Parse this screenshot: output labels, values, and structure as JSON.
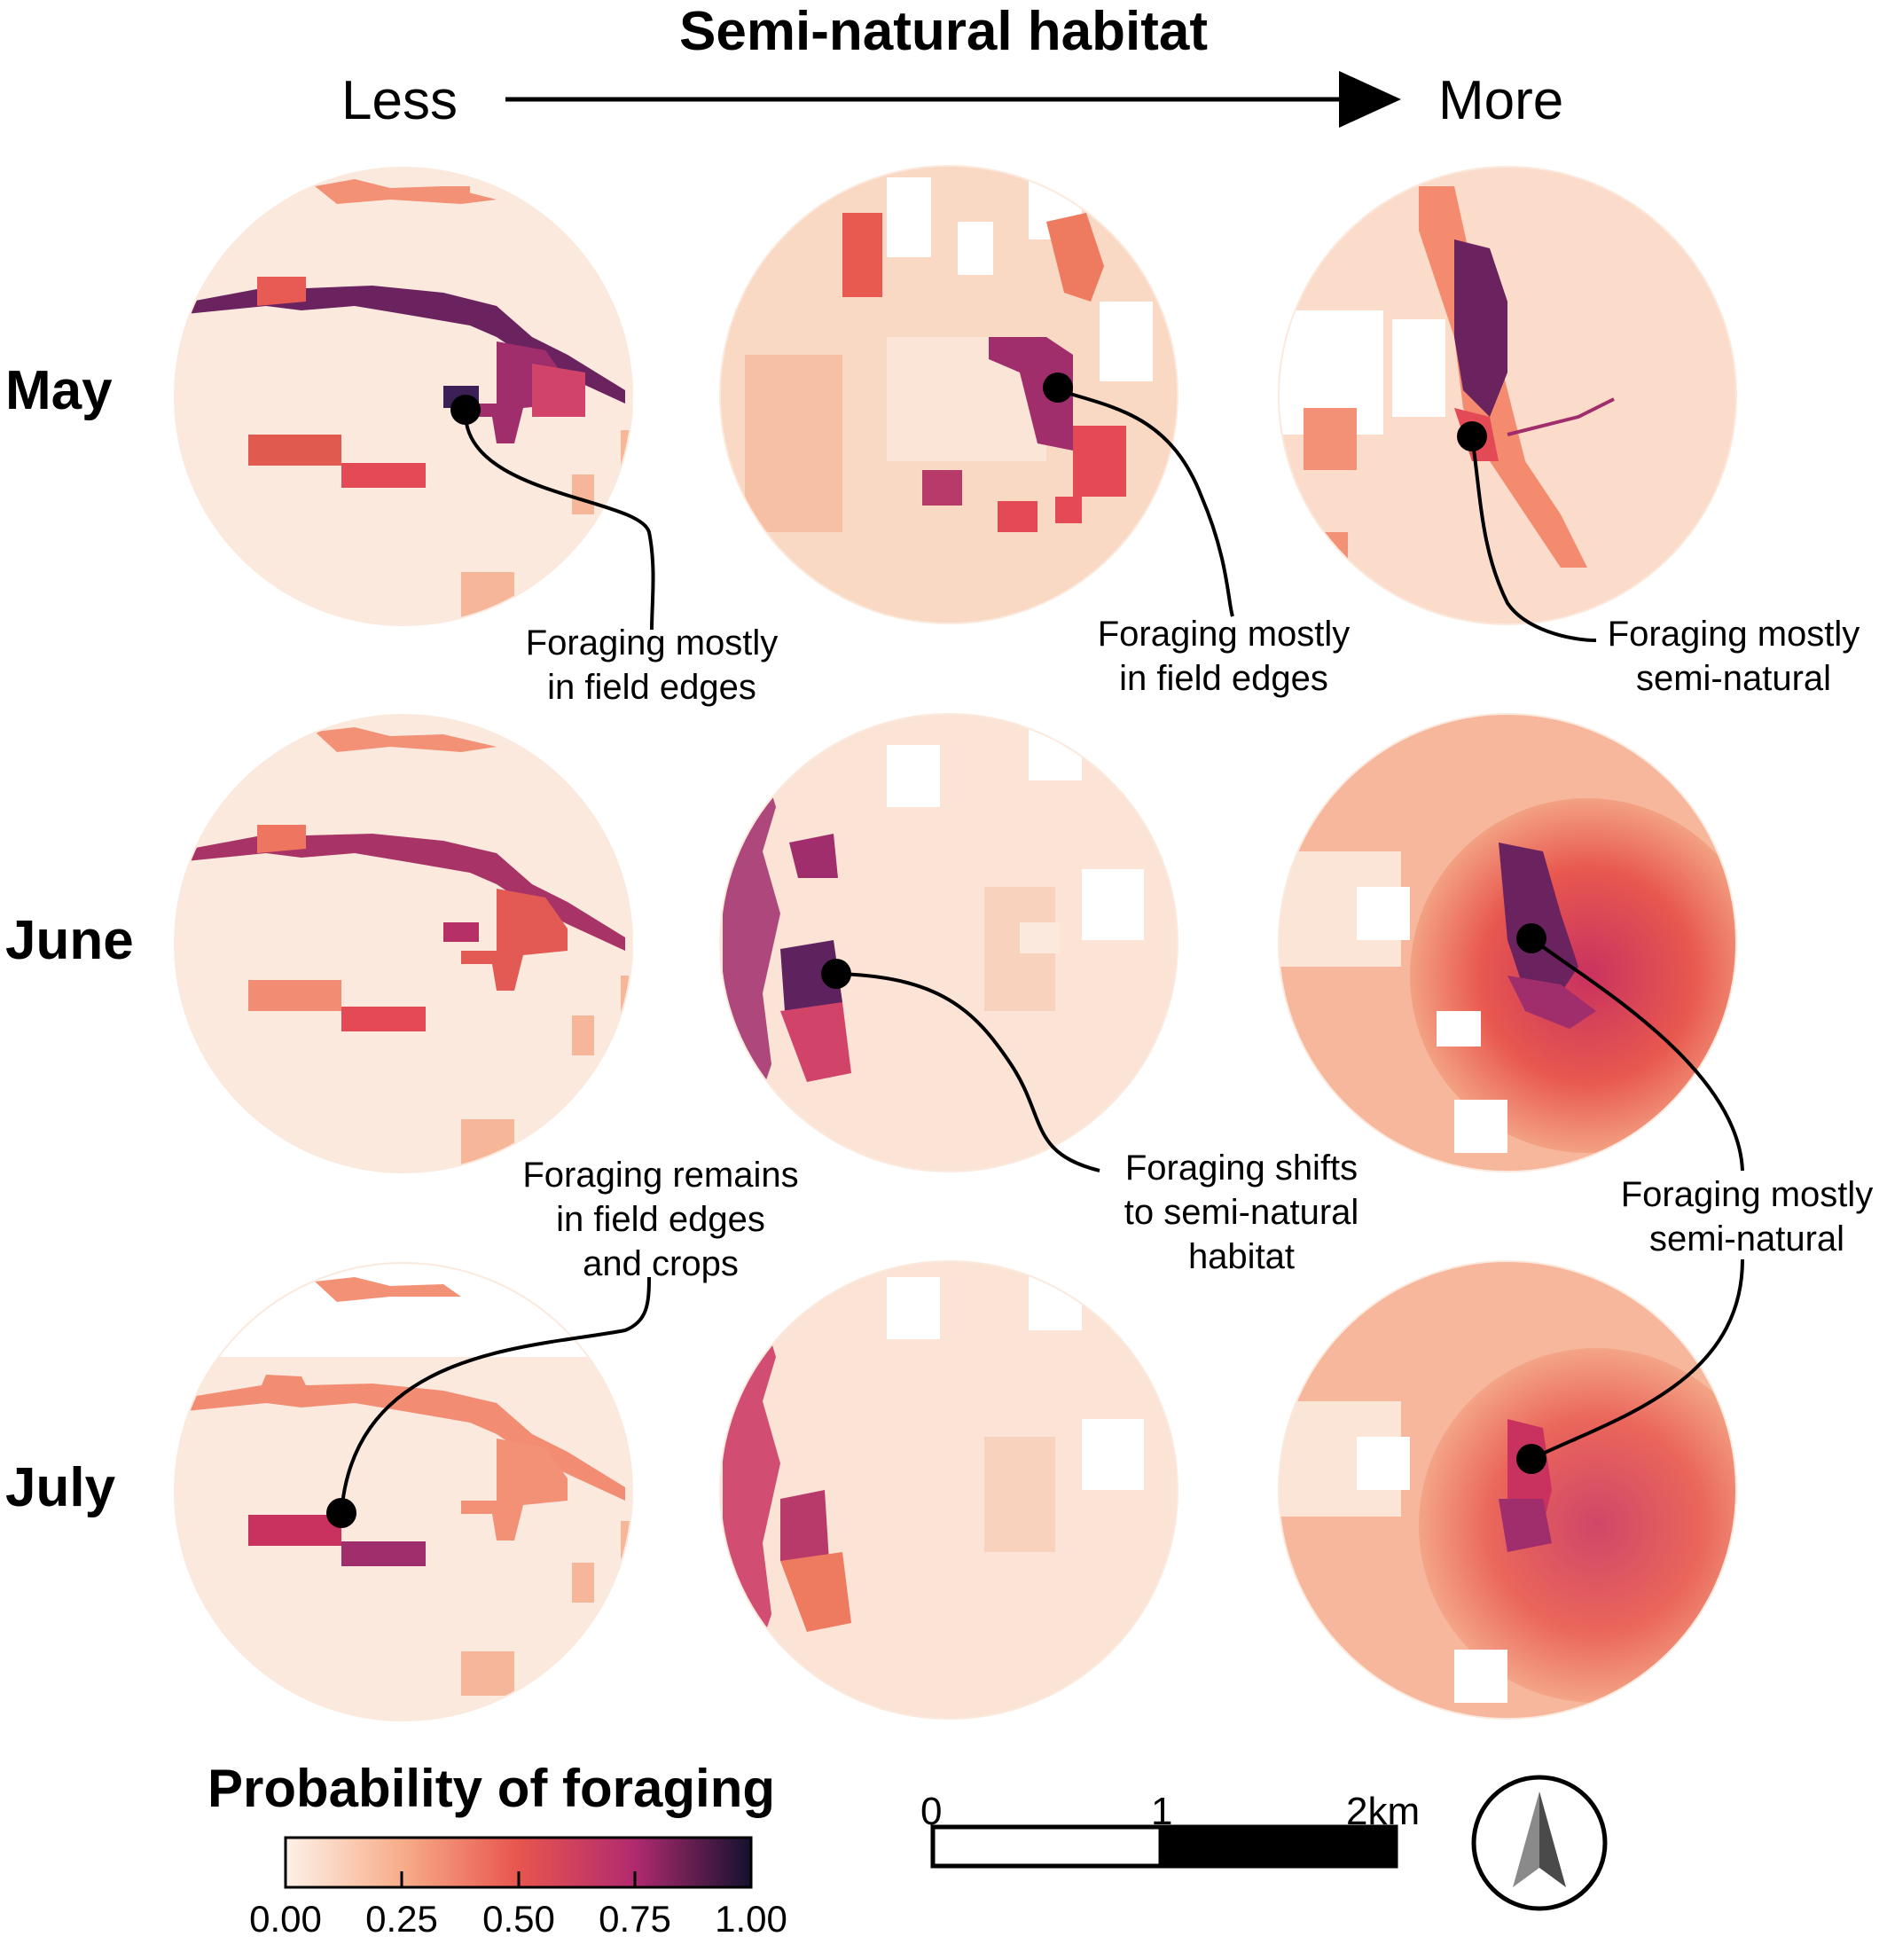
{
  "header": {
    "title": "Semi-natural habitat",
    "less_label": "Less",
    "more_label": "More"
  },
  "rows": [
    {
      "label": "May"
    },
    {
      "label": "June"
    },
    {
      "label": "July"
    }
  ],
  "annotations": [
    {
      "lines": [
        "Foraging mostly",
        "in field edges"
      ]
    },
    {
      "lines": [
        "Foraging mostly",
        "in field edges"
      ]
    },
    {
      "lines": [
        "Foraging mostly",
        "semi-natural"
      ]
    },
    {
      "lines": [
        "Foraging shifts",
        "to semi-natural",
        "habitat"
      ]
    },
    {
      "lines": [
        "Foraging mostly",
        "semi-natural"
      ]
    },
    {
      "lines": [
        "Foraging remains",
        "in field edges",
        "and crops"
      ]
    }
  ],
  "legend": {
    "title": "Probability of foraging",
    "ticks": [
      "0.00",
      "0.25",
      "0.50",
      "0.75",
      "1.00"
    ],
    "colors": [
      "#fdf1e8",
      "#f7ad8a",
      "#e8554e",
      "#b12a6f",
      "#14112e"
    ]
  },
  "scale_bar": {
    "labels": [
      "0",
      "1",
      "2km"
    ]
  },
  "north_arrow": {
    "icon": "north-arrow-icon"
  },
  "palette": {
    "background": "#fbe9dd",
    "light": "#f8d1bb",
    "mid": "#ee7a60",
    "high": "#d8405a",
    "very_high": "#922a6c",
    "max": "#4a1f5a"
  }
}
